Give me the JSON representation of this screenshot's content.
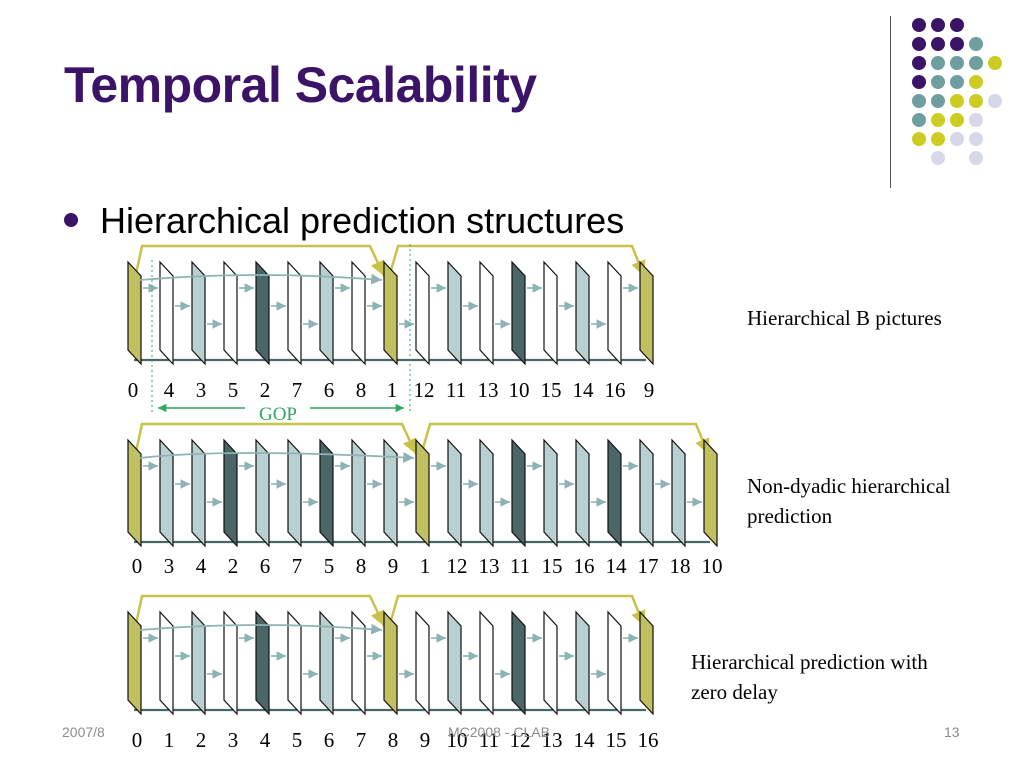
{
  "slide": {
    "title": "Temporal Scalability",
    "bullet": "Hierarchical prediction structures"
  },
  "diagrams": [
    {
      "caption": "Hierarchical B pictures",
      "labels": [
        "0",
        "4",
        "3",
        "5",
        "2",
        "7",
        "6",
        "8",
        "1",
        "12",
        "11",
        "13",
        "10",
        "15",
        "14",
        "16",
        "9"
      ],
      "gop_label": "GOP"
    },
    {
      "caption_lines": [
        "Non-dyadic hierarchical",
        "prediction"
      ],
      "labels": [
        "0",
        "3",
        "4",
        "2",
        "6",
        "7",
        "5",
        "8",
        "9",
        "1",
        "12",
        "13",
        "11",
        "15",
        "16",
        "14",
        "17",
        "18",
        "10"
      ]
    },
    {
      "caption_lines": [
        "Hierarchical prediction with",
        "zero delay"
      ],
      "labels": [
        "0",
        "1",
        "2",
        "3",
        "4",
        "5",
        "6",
        "7",
        "8",
        "9",
        "10",
        "11",
        "12",
        "13",
        "14",
        "15",
        "16"
      ]
    }
  ],
  "footer": {
    "date": "2007/8",
    "center": "MC2008 - CLAB",
    "page": "13"
  },
  "colors": {
    "title": "#3b1468",
    "key_frame": "#c0bf62",
    "level1_frame": "#4a6666",
    "level2_frame": "#b9d0d0",
    "level3_frame": "#ffffff",
    "gop_arrow": "#2ea862",
    "decor_purple": "#3b1468",
    "decor_teal": "#6f9ea0",
    "decor_yellow": "#cccc22",
    "decor_lavender": "#d7d7ea"
  }
}
